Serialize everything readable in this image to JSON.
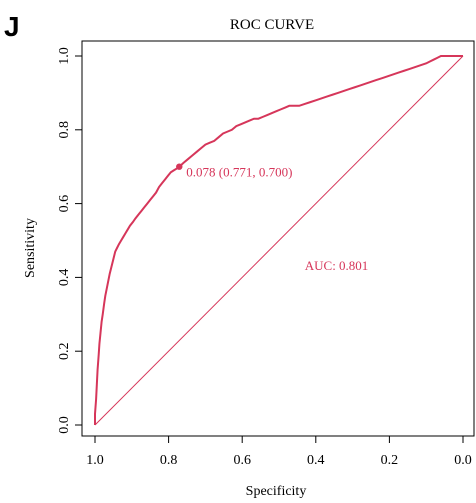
{
  "panel_label": "J",
  "colors": {
    "curve": "#d6365a",
    "axis": "#000000",
    "background": "#ffffff"
  },
  "chart_data": {
    "type": "line",
    "title": "ROC CURVE",
    "xlabel": "Specificity",
    "ylabel": "Sensitivity",
    "x_reversed": true,
    "xlim": [
      1.0,
      0.0
    ],
    "ylim": [
      0.0,
      1.0
    ],
    "x_ticks": [
      "1.0",
      "0.8",
      "0.6",
      "0.4",
      "0.2",
      "0.0"
    ],
    "x_tick_values": [
      1.0,
      0.8,
      0.6,
      0.4,
      0.2,
      0.0
    ],
    "y_ticks": [
      "0.0",
      "0.2",
      "0.4",
      "0.6",
      "0.8",
      "1.0"
    ],
    "y_tick_values": [
      0.0,
      0.2,
      0.4,
      0.6,
      0.8,
      1.0
    ],
    "grid": false,
    "series": [
      {
        "specificity": [
          1.0,
          1.0,
          0.997,
          0.995,
          0.993,
          0.99,
          0.988,
          0.985,
          0.982,
          0.979,
          0.975,
          0.972,
          0.968,
          0.964,
          0.96,
          0.955,
          0.95,
          0.945,
          0.94,
          0.935,
          0.929,
          0.923,
          0.917,
          0.911,
          0.905,
          0.897,
          0.89,
          0.882,
          0.874,
          0.866,
          0.858,
          0.85,
          0.842,
          0.834,
          0.826,
          0.818,
          0.81,
          0.802,
          0.794,
          0.786,
          0.778,
          0.771,
          0.76,
          0.748,
          0.736,
          0.724,
          0.712,
          0.7,
          0.688,
          0.676,
          0.664,
          0.652,
          0.64,
          0.628,
          0.616,
          0.604,
          0.592,
          0.58,
          0.568,
          0.556,
          0.544,
          0.532,
          0.52,
          0.508,
          0.496,
          0.484,
          0.472,
          0.46,
          0.445,
          0.43,
          0.415,
          0.4,
          0.385,
          0.37,
          0.355,
          0.34,
          0.325,
          0.31,
          0.295,
          0.28,
          0.265,
          0.25,
          0.235,
          0.22,
          0.205,
          0.19,
          0.175,
          0.16,
          0.145,
          0.13,
          0.115,
          0.1,
          0.09,
          0.08,
          0.07,
          0.06,
          0.05,
          0.04,
          0.03,
          0.02,
          0.01,
          0.0
        ],
        "sensitivity": [
          0.0,
          0.03,
          0.07,
          0.11,
          0.15,
          0.19,
          0.22,
          0.25,
          0.28,
          0.3,
          0.33,
          0.35,
          0.37,
          0.39,
          0.41,
          0.43,
          0.45,
          0.47,
          0.48,
          0.49,
          0.5,
          0.51,
          0.52,
          0.53,
          0.54,
          0.55,
          0.56,
          0.57,
          0.58,
          0.59,
          0.6,
          0.61,
          0.62,
          0.63,
          0.645,
          0.655,
          0.665,
          0.675,
          0.685,
          0.69,
          0.695,
          0.7,
          0.71,
          0.72,
          0.73,
          0.74,
          0.75,
          0.76,
          0.765,
          0.77,
          0.78,
          0.79,
          0.795,
          0.8,
          0.81,
          0.815,
          0.82,
          0.825,
          0.83,
          0.83,
          0.835,
          0.84,
          0.845,
          0.85,
          0.855,
          0.86,
          0.865,
          0.865,
          0.865,
          0.87,
          0.875,
          0.88,
          0.885,
          0.89,
          0.895,
          0.9,
          0.905,
          0.91,
          0.915,
          0.92,
          0.925,
          0.93,
          0.935,
          0.94,
          0.945,
          0.95,
          0.955,
          0.96,
          0.965,
          0.97,
          0.975,
          0.98,
          0.985,
          0.99,
          0.995,
          1.0,
          1.0,
          1.0,
          1.0,
          1.0,
          1.0,
          1.0
        ]
      }
    ],
    "reference_line": {
      "from": [
        1.0,
        0.0
      ],
      "to": [
        0.0,
        1.0
      ]
    },
    "threshold_point": {
      "specificity": 0.771,
      "sensitivity": 0.7,
      "label": "0.078 (0.771, 0.700)"
    },
    "auc_label": "AUC: 0.801"
  }
}
